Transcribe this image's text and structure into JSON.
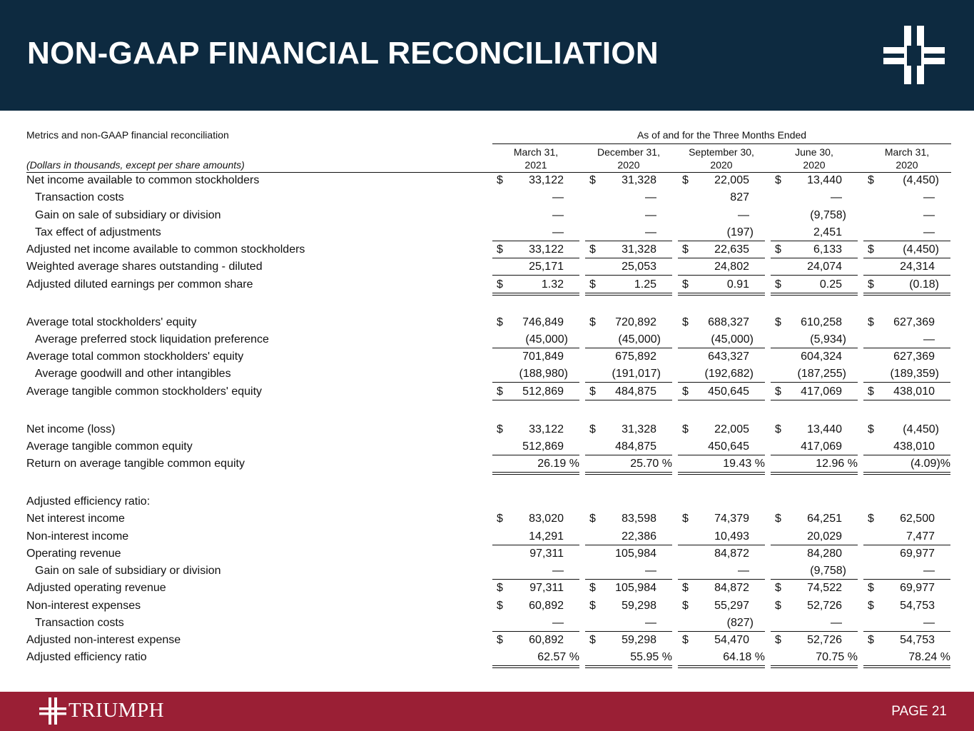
{
  "header": {
    "title": "NON-GAAP FINANCIAL RECONCILIATION"
  },
  "table": {
    "caption": "Metrics and non-GAAP financial reconciliation",
    "group_header": "As of and for the Three Months Ended",
    "units_note": "(Dollars in thousands, except per share amounts)",
    "columns": [
      [
        "March 31,",
        "2021"
      ],
      [
        "December 31,",
        "2020"
      ],
      [
        "September 30,",
        "2020"
      ],
      [
        "June 30,",
        "2020"
      ],
      [
        "March 31,",
        "2020"
      ]
    ],
    "sections": [
      {
        "rows": [
          {
            "label": "Net income available to common stockholders",
            "currency": "$",
            "values": [
              "33,122",
              "31,328",
              "22,005",
              "13,440",
              "(4,450)"
            ]
          },
          {
            "label": "Transaction costs",
            "indent": true,
            "values": [
              "—",
              "—",
              "827",
              "—",
              "—"
            ]
          },
          {
            "label": "Gain on sale of subsidiary or division",
            "indent": true,
            "values": [
              "—",
              "—",
              "—",
              "(9,758)",
              "—"
            ]
          },
          {
            "label": "Tax effect of adjustments",
            "indent": true,
            "values": [
              "—",
              "—",
              "(197)",
              "2,451",
              "—"
            ],
            "rule": "single"
          },
          {
            "label": "Adjusted net income available to common stockholders",
            "currency": "$",
            "values": [
              "33,122",
              "31,328",
              "22,635",
              "6,133",
              "(4,450)"
            ],
            "rule": "single"
          },
          {
            "label": "Weighted average shares outstanding - diluted",
            "values": [
              "25,171",
              "25,053",
              "24,802",
              "24,074",
              "24,314"
            ],
            "rule": "single"
          },
          {
            "label": "Adjusted diluted earnings per common share",
            "currency": "$",
            "values": [
              "1.32",
              "1.25",
              "0.91",
              "0.25",
              "(0.18)"
            ],
            "rule": "double"
          }
        ]
      },
      {
        "rows": [
          {
            "label": "Average total stockholders' equity",
            "currency": "$",
            "values": [
              "746,849",
              "720,892",
              "688,327",
              "610,258",
              "627,369"
            ]
          },
          {
            "label": "Average preferred stock liquidation preference",
            "indent": true,
            "values": [
              "(45,000)",
              "(45,000)",
              "(45,000)",
              "(5,934)",
              "—"
            ],
            "rule": "single"
          },
          {
            "label": "Average total common stockholders' equity",
            "values": [
              "701,849",
              "675,892",
              "643,327",
              "604,324",
              "627,369"
            ]
          },
          {
            "label": "Average goodwill and other intangibles",
            "indent": true,
            "values": [
              "(188,980)",
              "(191,017)",
              "(192,682)",
              "(187,255)",
              "(189,359)"
            ],
            "rule": "single"
          },
          {
            "label": "Average tangible common stockholders' equity",
            "currency": "$",
            "values": [
              "512,869",
              "484,875",
              "450,645",
              "417,069",
              "438,010"
            ],
            "rule": "single"
          }
        ]
      },
      {
        "rows": [
          {
            "label": "Net income (loss)",
            "currency": "$",
            "values": [
              "33,122",
              "31,328",
              "22,005",
              "13,440",
              "(4,450)"
            ]
          },
          {
            "label": "Average tangible common equity",
            "values": [
              "512,869",
              "484,875",
              "450,645",
              "417,069",
              "438,010"
            ],
            "rule": "single"
          },
          {
            "label": "Return on average tangible common equity",
            "values": [
              "26.19 %",
              "25.70 %",
              "19.43 %",
              "12.96 %",
              "(4.09)%"
            ],
            "rule": "double"
          }
        ]
      },
      {
        "rows": [
          {
            "label": "Adjusted efficiency ratio:"
          },
          {
            "label": "Net interest income",
            "currency": "$",
            "values": [
              "83,020",
              "83,598",
              "74,379",
              "64,251",
              "62,500"
            ]
          },
          {
            "label": "Non-interest income",
            "values": [
              "14,291",
              "22,386",
              "10,493",
              "20,029",
              "7,477"
            ],
            "rule": "single"
          },
          {
            "label": "Operating revenue",
            "values": [
              "97,311",
              "105,984",
              "84,872",
              "84,280",
              "69,977"
            ]
          },
          {
            "label": "Gain on sale of subsidiary or division",
            "indent": true,
            "values": [
              "—",
              "—",
              "—",
              "(9,758)",
              "—"
            ],
            "rule": "single"
          },
          {
            "label": "Adjusted operating revenue",
            "currency": "$",
            "values": [
              "97,311",
              "105,984",
              "84,872",
              "74,522",
              "69,977"
            ]
          },
          {
            "label": "Non-interest expenses",
            "currency": "$",
            "values": [
              "60,892",
              "59,298",
              "55,297",
              "52,726",
              "54,753"
            ]
          },
          {
            "label": "Transaction costs",
            "indent": true,
            "values": [
              "—",
              "—",
              "(827)",
              "—",
              "—"
            ],
            "rule": "single"
          },
          {
            "label": "Adjusted non-interest expense",
            "currency": "$",
            "values": [
              "60,892",
              "59,298",
              "54,470",
              "52,726",
              "54,753"
            ]
          },
          {
            "label": "Adjusted efficiency ratio",
            "values": [
              "62.57 %",
              "55.95 %",
              "64.18 %",
              "70.75 %",
              "78.24 %"
            ],
            "rule": "double"
          }
        ]
      }
    ]
  },
  "footer": {
    "logo_text": "TRIUMPH",
    "page": "PAGE 21"
  }
}
